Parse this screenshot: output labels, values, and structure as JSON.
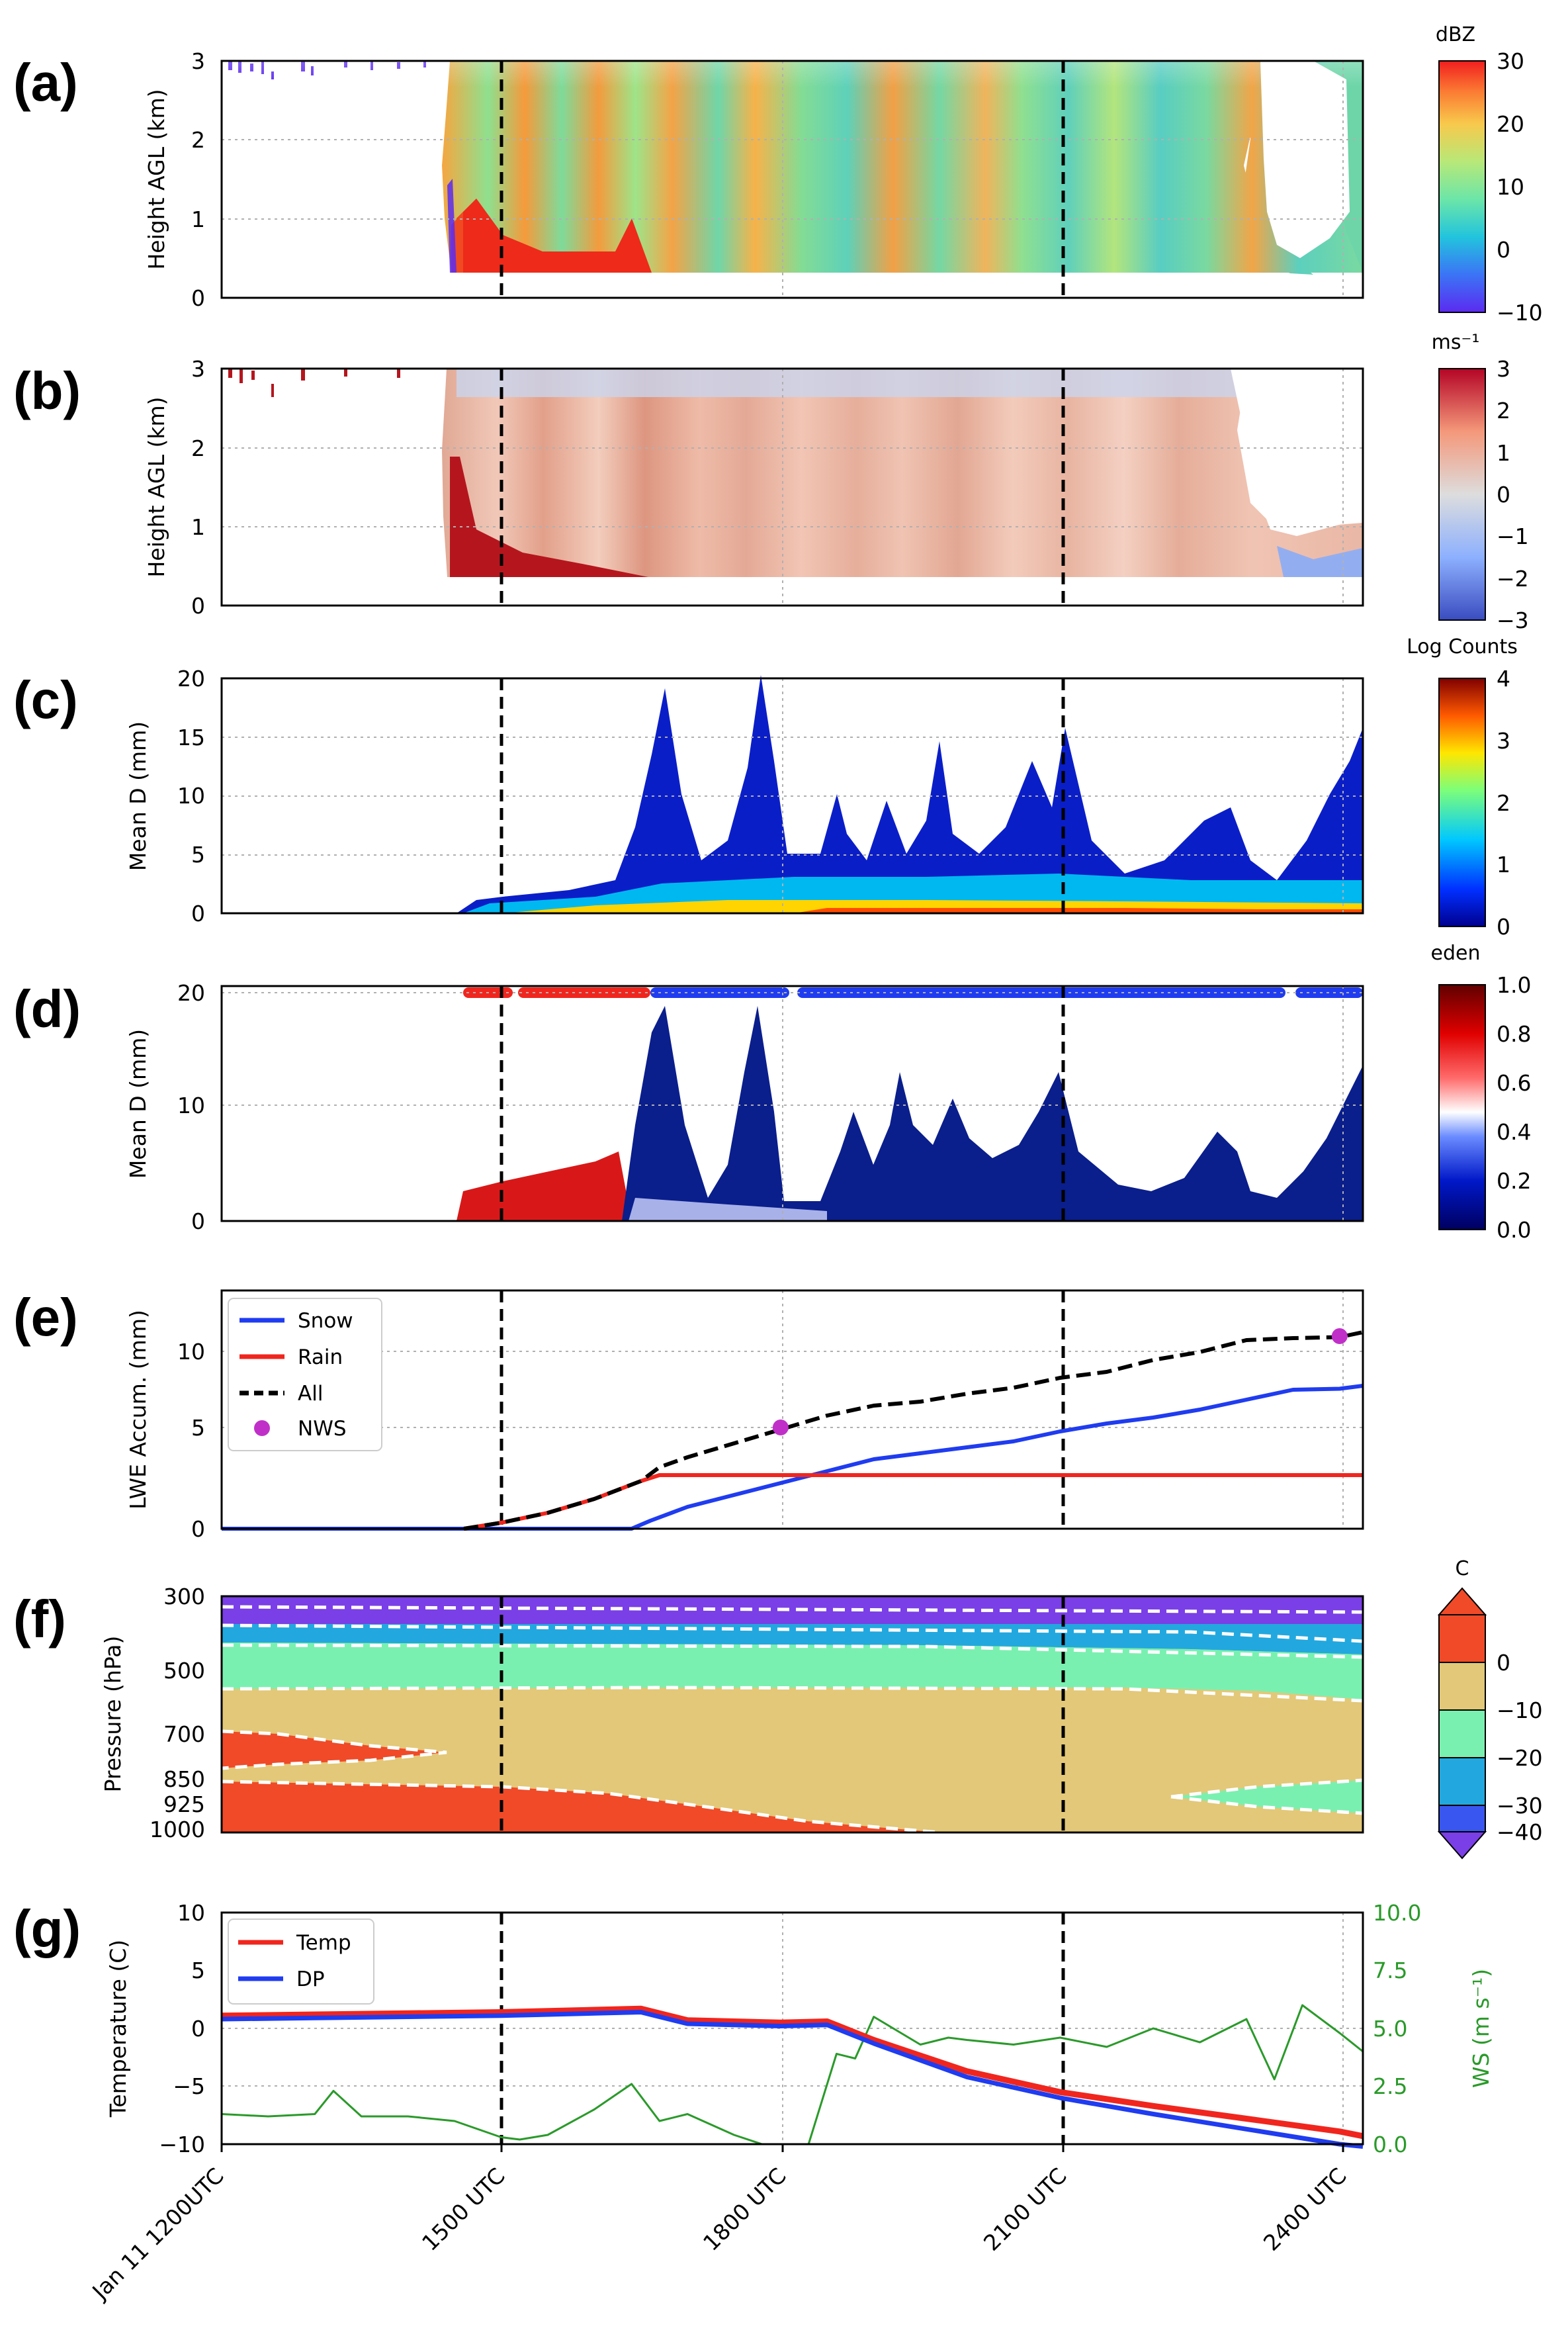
{
  "figure": {
    "panels": [
      {
        "id": "a",
        "letter": "(a)",
        "ylabel": "Height AGL (km)",
        "colorbar_label": "dBZ",
        "colorbar_ticks": [
          "30",
          "20",
          "10",
          "0",
          "−10"
        ]
      },
      {
        "id": "b",
        "letter": "(b)",
        "ylabel": "Height AGL (km)",
        "colorbar_label": "ms⁻¹",
        "colorbar_ticks": [
          "3",
          "2",
          "1",
          "0",
          "−1",
          "−2",
          "−3"
        ]
      },
      {
        "id": "c",
        "letter": "(c)",
        "ylabel": "Mean D (mm)",
        "colorbar_label": "Log Counts",
        "colorbar_ticks": [
          "4",
          "3",
          "2",
          "1",
          "0"
        ]
      },
      {
        "id": "d",
        "letter": "(d)",
        "ylabel": "Mean D (mm)",
        "colorbar_label": "eden",
        "colorbar_ticks": [
          "1.0",
          "0.8",
          "0.6",
          "0.4",
          "0.2",
          "0.0"
        ]
      },
      {
        "id": "e",
        "letter": "(e)",
        "ylabel": "LWE Accum. (mm)"
      },
      {
        "id": "f",
        "letter": "(f)",
        "ylabel": "Pressure (hPa)",
        "colorbar_label": "C",
        "colorbar_ticks": [
          "0",
          "−10",
          "−20",
          "−30",
          "−40"
        ]
      },
      {
        "id": "g",
        "letter": "(g)",
        "ylabel": "Temperature (C)",
        "ylabel_right": "WS (m s⁻¹)"
      }
    ],
    "x_tick_labels": [
      "Jan 11 1200UTC",
      "1500 UTC",
      "1800 UTC",
      "2100 UTC",
      "2400 UTC"
    ],
    "legend_e": [
      "Snow",
      "Rain",
      "All",
      "NWS"
    ],
    "legend_g": [
      "Temp",
      "DP"
    ],
    "colors": {
      "snow": "#1f3cf0",
      "rain": "#f0261e",
      "all": "#000000",
      "nws": "#c030c8",
      "temp": "#f0261e",
      "dp": "#1f3cf0",
      "ws": "#2a9a2a"
    }
  },
  "chart_data": [
    {
      "panel": "a",
      "type": "heatmap",
      "x": "hours since Jan 11 1200 UTC",
      "xlim": [
        0,
        12.25
      ],
      "ylabel": "Height AGL (km)",
      "ylim": [
        0,
        3
      ],
      "yticks": [
        0,
        1,
        2,
        3
      ],
      "colorbar": {
        "label": "dBZ",
        "range": [
          -10,
          30
        ]
      },
      "vertical_dashed_lines_utc": [
        1500,
        2100
      ]
    },
    {
      "panel": "b",
      "type": "heatmap",
      "ylabel": "Height AGL (km)",
      "ylim": [
        0,
        3
      ],
      "yticks": [
        0,
        1,
        2,
        3
      ],
      "colorbar": {
        "label": "ms⁻¹",
        "range": [
          -3,
          3
        ]
      }
    },
    {
      "panel": "c",
      "type": "heatmap",
      "ylabel": "Mean D (mm)",
      "ylim": [
        0,
        20
      ],
      "yticks": [
        0,
        5,
        10,
        15,
        20
      ],
      "colorbar": {
        "label": "Log Counts",
        "range": [
          0,
          4
        ]
      }
    },
    {
      "panel": "d",
      "type": "scatter",
      "ylabel": "Mean D (mm)",
      "ylim": [
        0,
        21
      ],
      "yticks": [
        0,
        10,
        20
      ],
      "colorbar": {
        "label": "eden",
        "range": [
          0,
          1
        ]
      },
      "phase_bar_at_20mm": [
        {
          "from": 2.6,
          "to": 3.1,
          "phase": "rain"
        },
        {
          "from": 3.2,
          "to": 4.6,
          "phase": "rain"
        },
        {
          "from": 4.6,
          "to": 6.1,
          "phase": "snow"
        },
        {
          "from": 6.2,
          "to": 11.4,
          "phase": "snow"
        },
        {
          "from": 11.6,
          "to": 12.25,
          "phase": "snow"
        }
      ]
    },
    {
      "panel": "e",
      "type": "line",
      "ylabel": "LWE Accum. (mm)",
      "ylim": [
        0,
        12
      ],
      "yticks": [
        0,
        5,
        10
      ],
      "series": [
        {
          "name": "Snow",
          "x": [
            0,
            4.4,
            4.6,
            5,
            5.5,
            6,
            6.5,
            7,
            7.5,
            8,
            8.5,
            9,
            9.5,
            10,
            10.5,
            11,
            11.5,
            12,
            12.25
          ],
          "values": [
            0,
            0,
            0.4,
            1.1,
            1.7,
            2.3,
            2.9,
            3.5,
            3.8,
            4.1,
            4.4,
            4.9,
            5.3,
            5.6,
            6.0,
            6.5,
            7.0,
            7.05,
            7.2
          ]
        },
        {
          "name": "Rain",
          "x": [
            2.6,
            3,
            3.5,
            4,
            4.5,
            4.7,
            12.25
          ],
          "values": [
            0,
            0.3,
            0.8,
            1.5,
            2.4,
            2.7,
            2.7
          ]
        },
        {
          "name": "All",
          "x": [
            2.6,
            3,
            3.5,
            4,
            4.5,
            4.7,
            5,
            5.5,
            6,
            6.5,
            7,
            7.5,
            8,
            8.5,
            9,
            9.5,
            10,
            10.5,
            11,
            11.5,
            12,
            12.25
          ],
          "values": [
            0,
            0.3,
            0.8,
            1.5,
            2.4,
            3.1,
            3.6,
            4.3,
            5.0,
            5.7,
            6.2,
            6.4,
            6.8,
            7.1,
            7.6,
            7.9,
            8.5,
            8.9,
            9.5,
            9.6,
            9.65,
            9.9
          ]
        },
        {
          "name": "NWS",
          "x": [
            6,
            12
          ],
          "values": [
            5.1,
            9.7
          ]
        }
      ]
    },
    {
      "panel": "f",
      "type": "area",
      "ylabel": "Pressure (hPa)",
      "yticks": [
        300,
        500,
        700,
        850,
        925,
        1000
      ],
      "colorbar": {
        "label": "C",
        "levels": [
          -40,
          -30,
          -20,
          -10,
          0
        ],
        "extend": "both"
      }
    },
    {
      "panel": "g",
      "type": "line",
      "ylabel": "Temperature (C)",
      "ylim": [
        -10,
        10
      ],
      "yticks": [
        -10,
        -5,
        0,
        5,
        10
      ],
      "ylabel_right": "WS (m s⁻¹)",
      "ylim_right": [
        0,
        10
      ],
      "yticks_right": [
        0.0,
        2.5,
        5.0,
        7.5,
        10.0
      ],
      "series": [
        {
          "name": "Temp",
          "x": [
            0,
            1,
            2,
            3,
            4,
            4.5,
            5,
            6,
            6.5,
            7,
            8,
            9,
            10,
            11,
            12,
            12.25
          ],
          "values": [
            1.1,
            1.2,
            1.3,
            1.4,
            1.6,
            1.7,
            0.7,
            0.5,
            0.6,
            -1.0,
            -3.7,
            -5.5,
            -6.7,
            -7.8,
            -8.9,
            -9.3
          ]
        },
        {
          "name": "DP",
          "x": [
            0,
            1,
            2,
            3,
            4,
            4.5,
            5,
            6,
            6.5,
            7,
            8,
            9,
            10,
            11,
            12,
            12.25
          ],
          "values": [
            0.8,
            0.9,
            1.0,
            1.1,
            1.3,
            1.4,
            0.4,
            0.2,
            0.3,
            -1.3,
            -4.2,
            -6.0,
            -7.4,
            -8.7,
            -10.0,
            -10.2
          ]
        },
        {
          "name": "WS",
          "axis": "right",
          "x": [
            0,
            0.5,
            1,
            1.2,
            1.5,
            2,
            2.5,
            3,
            3.2,
            3.5,
            4,
            4.4,
            4.7,
            5,
            5.5,
            5.8,
            6,
            6.3,
            6.6,
            6.8,
            7,
            7.5,
            7.8,
            8,
            8.5,
            9,
            9.5,
            10,
            10.5,
            11,
            11.3,
            11.6,
            12,
            12.25
          ],
          "values": [
            1.3,
            1.2,
            1.3,
            2.3,
            1.2,
            1.2,
            1.0,
            0.3,
            0.2,
            0.4,
            1.5,
            2.6,
            1.0,
            1.3,
            0.4,
            0.0,
            0.0,
            0.0,
            3.9,
            3.7,
            5.5,
            4.3,
            4.6,
            4.5,
            4.3,
            4.6,
            4.2,
            5.0,
            4.4,
            5.4,
            2.8,
            6.0,
            4.8,
            4.0
          ]
        }
      ]
    }
  ]
}
